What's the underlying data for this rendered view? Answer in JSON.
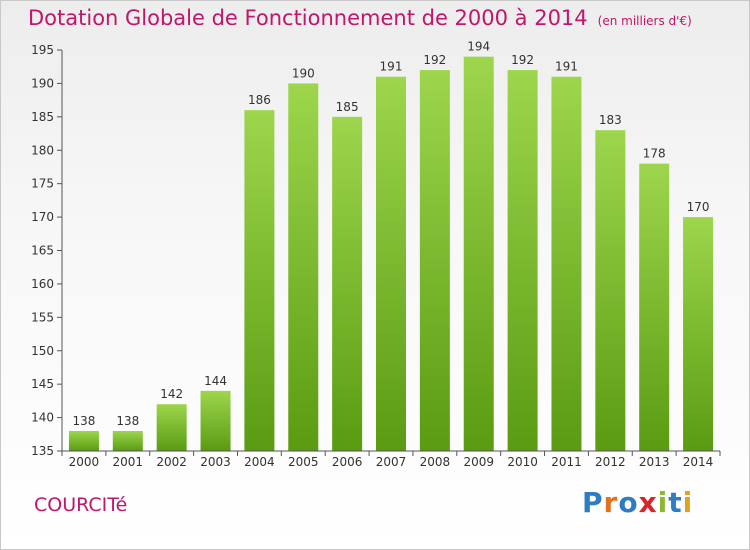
{
  "header": {
    "title": "Dotation Globale de Fonctionnement de 2000 à 2014",
    "subtitle": "(en milliers d'€)"
  },
  "footer": {
    "commune": "COURCITé",
    "logo_text": "Proxiti"
  },
  "colors": {
    "title": "#c0166b",
    "bar_top": "#9dd64d",
    "bar_bottom": "#5a9b12",
    "axis": "#555555"
  },
  "chart_data": {
    "type": "bar",
    "categories": [
      "2000",
      "2001",
      "2002",
      "2003",
      "2004",
      "2005",
      "2006",
      "2007",
      "2008",
      "2009",
      "2010",
      "2011",
      "2012",
      "2013",
      "2014"
    ],
    "values": [
      138,
      138,
      142,
      144,
      186,
      190,
      185,
      191,
      192,
      194,
      192,
      191,
      183,
      178,
      170
    ],
    "title": "Dotation Globale de Fonctionnement de 2000 à 2014",
    "subtitle": "(en milliers d'€)",
    "xlabel": "",
    "ylabel": "",
    "ylim": [
      135,
      195
    ],
    "yticks": [
      135,
      140,
      145,
      150,
      155,
      160,
      165,
      170,
      175,
      180,
      185,
      190,
      195
    ],
    "grid": false,
    "legend": "none"
  }
}
